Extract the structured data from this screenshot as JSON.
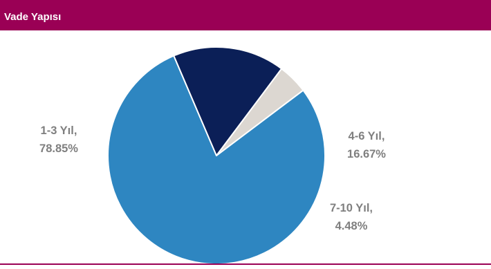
{
  "header": {
    "title": "Vade Yapısı"
  },
  "colors": {
    "header_bg": "#9a0055",
    "label_text": "#7f7f7f",
    "slice_stroke": "#ffffff"
  },
  "chart_data": {
    "type": "pie",
    "title": "",
    "slices": [
      {
        "name": "1-3 Yıl,",
        "value": 78.85,
        "label": "78.85%",
        "color": "#2e86c1"
      },
      {
        "name": "4-6 Yıl,",
        "value": 16.67,
        "label": "16.67%",
        "color": "#0b1f57"
      },
      {
        "name": "7-10 Yıl,",
        "value": 4.48,
        "label": "4.48%",
        "color": "#dcd7d1"
      }
    ]
  }
}
